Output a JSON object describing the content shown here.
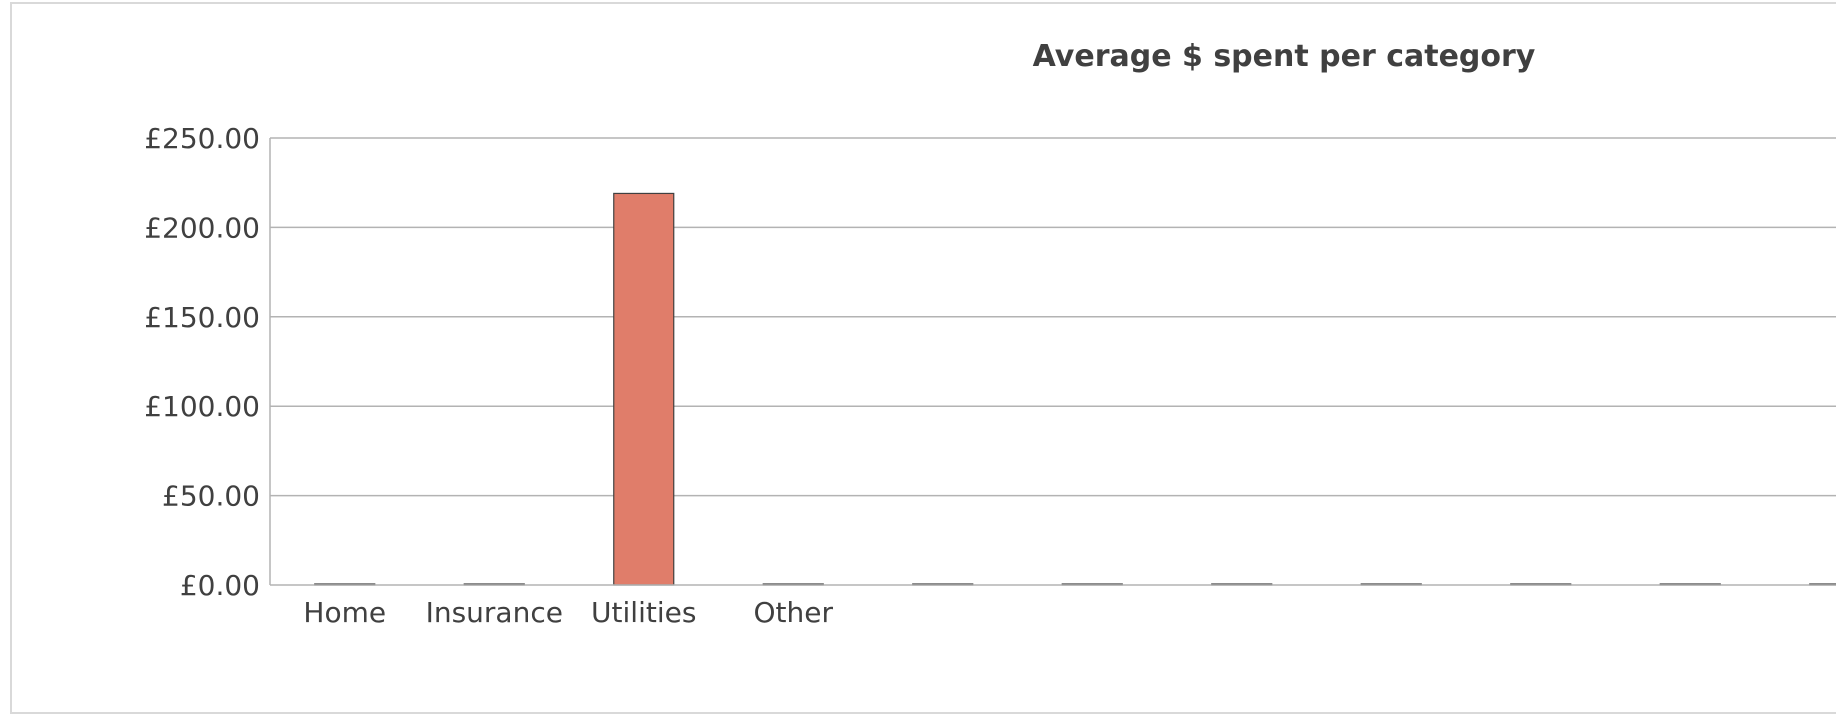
{
  "chart_data": {
    "type": "bar",
    "title": "Average $ spent per category",
    "xlabel": "",
    "ylabel": "",
    "categories": [
      "Home",
      "Insurance",
      "Utilities",
      "Other",
      "",
      "",
      "",
      "",
      "",
      "",
      ""
    ],
    "values": [
      0,
      0,
      219,
      0,
      0,
      0,
      0,
      0,
      0,
      0,
      0
    ],
    "ylim": [
      0,
      250
    ],
    "yticks": [
      0,
      50,
      100,
      150,
      200,
      250
    ],
    "ytick_labels": [
      "£0.00",
      "£50.00",
      "£100.00",
      "£150.00",
      "£200.00",
      "£250.00"
    ],
    "grid": true,
    "legend": "none",
    "bar_color": "#e07d6a"
  }
}
